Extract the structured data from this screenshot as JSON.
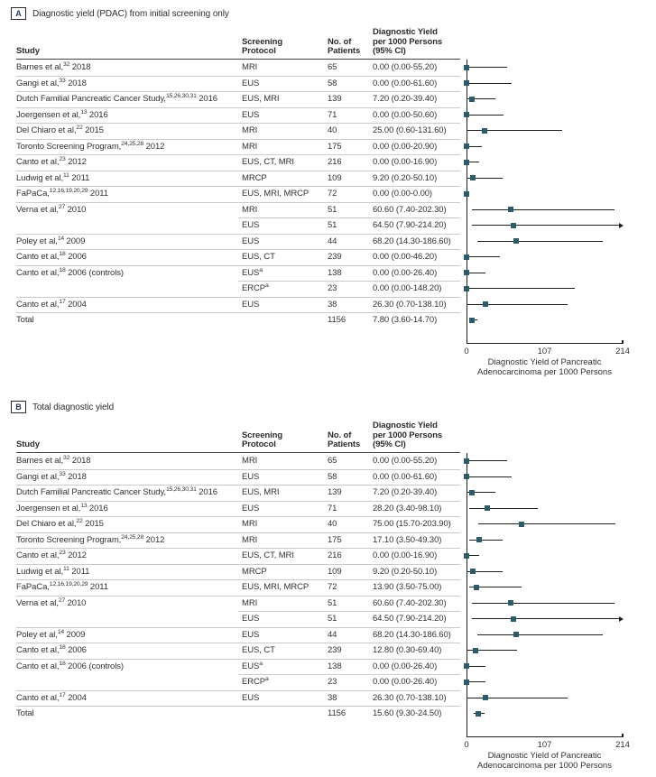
{
  "colors": {
    "marker": "#2d5b69",
    "ci_line": "#1f1f1f",
    "separator": "#cbcbcb",
    "header_rule": "#424242",
    "text": "#323232"
  },
  "chart_data": [
    {
      "type": "scatter",
      "subtype": "forest-plot",
      "panel_label": "A",
      "panel_title": "Diagnostic yield (PDAC) from initial screening only",
      "columns": {
        "study": "Study",
        "protocol": "Screening\nProtocol",
        "patients": "No. of\nPatients",
        "yield": "Diagnostic Yield\nper 1000 Persons\n(95% CI)"
      },
      "xlabel": "Diagnostic Yield of Pancreatic\nAdenocarcinoma per 1000 Persons",
      "xlim": [
        0,
        214
      ],
      "xticks": [
        "0",
        "107",
        "214"
      ],
      "xtick_values": [
        0,
        107,
        214
      ],
      "rows": [
        {
          "study": "Barnes et al,",
          "refs": "32",
          "suffix": " 2018",
          "protocol": "MRI",
          "patients": "65",
          "ci_text": "0.00 (0.00-55.20)",
          "est": 0,
          "lo": 0,
          "hi": 55.2
        },
        {
          "study": "Gangi et al,",
          "refs": "33",
          "suffix": " 2018",
          "protocol": "EUS",
          "patients": "58",
          "ci_text": "0.00 (0.00-61.60)",
          "est": 0,
          "lo": 0,
          "hi": 61.6
        },
        {
          "study": "Dutch Familial Pancreatic Cancer Study,",
          "refs": "15,26,30,31",
          "suffix": " 2016",
          "protocol": "EUS, MRI",
          "patients": "139",
          "ci_text": "7.20 (0.20-39.40)",
          "est": 7.2,
          "lo": 0.2,
          "hi": 39.4
        },
        {
          "study": "Joergensen et al,",
          "refs": "13",
          "suffix": " 2016",
          "protocol": "EUS",
          "patients": "71",
          "ci_text": "0.00 (0.00-50.60)",
          "est": 0,
          "lo": 0,
          "hi": 50.6
        },
        {
          "study": "Del Chiaro et al,",
          "refs": "22",
          "suffix": " 2015",
          "protocol": "MRI",
          "patients": "40",
          "ci_text": "25.00 (0.60-131.60)",
          "est": 25,
          "lo": 0.6,
          "hi": 131.6
        },
        {
          "study": "Toronto Screening Program,",
          "refs": "24,25,28",
          "suffix": " 2012",
          "protocol": "MRI",
          "patients": "175",
          "ci_text": "0.00 (0.00-20.90)",
          "est": 0,
          "lo": 0,
          "hi": 20.9
        },
        {
          "study": "Canto et al,",
          "refs": "23",
          "suffix": " 2012",
          "protocol": "EUS, CT, MRI",
          "patients": "216",
          "ci_text": "0.00 (0.00-16.90)",
          "est": 0,
          "lo": 0,
          "hi": 16.9
        },
        {
          "study": "Ludwig et al,",
          "refs": "11",
          "suffix": " 2011",
          "protocol": "MRCP",
          "patients": "109",
          "ci_text": "9.20 (0.20-50.10)",
          "est": 9.2,
          "lo": 0.2,
          "hi": 50.1
        },
        {
          "study": "FaPaCa,",
          "refs": "12,16,19,20,29",
          "suffix": " 2011",
          "protocol": "EUS, MRI, MRCP",
          "patients": "72",
          "ci_text": "0.00 (0.00-0.00)",
          "est": 0,
          "lo": 0,
          "hi": 0
        },
        {
          "study": "Verna et al,",
          "refs": "27",
          "suffix": " 2010",
          "protocol": "MRI",
          "patients": "51",
          "ci_text": "60.60 (7.40-202.30)",
          "est": 60.6,
          "lo": 7.4,
          "hi": 202.3
        },
        {
          "continuation": true,
          "protocol": "EUS",
          "patients": "51",
          "ci_text": "64.50 (7.90-214.20)",
          "est": 64.5,
          "lo": 7.9,
          "hi": 214.2,
          "arrow": true
        },
        {
          "study": "Poley et al,",
          "refs": "14",
          "suffix": " 2009",
          "protocol": "EUS",
          "patients": "44",
          "ci_text": "68.20 (14.30-186.60)",
          "est": 68.2,
          "lo": 14.3,
          "hi": 186.6
        },
        {
          "study": "Canto et al,",
          "refs": "18",
          "suffix": " 2006",
          "protocol": "EUS, CT",
          "patients": "239",
          "ci_text": "0.00 (0.00-46.20)",
          "est": 0,
          "lo": 0,
          "hi": 46.2
        },
        {
          "study": "Canto et al,",
          "refs": "18",
          "suffix": " 2006 (controls)",
          "protocol": "EUS",
          "protocol_sup": "a",
          "patients": "138",
          "ci_text": "0.00 (0.00-26.40)",
          "est": 0,
          "lo": 0,
          "hi": 26.4
        },
        {
          "continuation": true,
          "protocol": "ERCP",
          "protocol_sup": "a",
          "patients": "23",
          "ci_text": "0.00 (0.00-148.20)",
          "est": 0,
          "lo": 0,
          "hi": 148.2
        },
        {
          "study": "Canto et al,",
          "refs": "17",
          "suffix": " 2004",
          "protocol": "EUS",
          "patients": "38",
          "ci_text": "26.30 (0.70-138.10)",
          "est": 26.3,
          "lo": 0.7,
          "hi": 138.1
        },
        {
          "study": "Total",
          "total": true,
          "protocol": "",
          "patients": "1156",
          "ci_text": "7.80 (3.60-14.70)",
          "est": 7.8,
          "lo": 3.6,
          "hi": 14.7
        }
      ]
    },
    {
      "type": "scatter",
      "subtype": "forest-plot",
      "panel_label": "B",
      "panel_title": "Total diagnostic yield",
      "columns": {
        "study": "Study",
        "protocol": "Screening\nProtocol",
        "patients": "No. of\nPatients",
        "yield": "Diagnostic Yield\nper 1000 Persons\n(95% CI)"
      },
      "xlabel": "Diagnostic Yield of Pancreatic\nAdenocarcinoma per 1000 Persons",
      "xlim": [
        0,
        214
      ],
      "xticks": [
        "0",
        "107",
        "214"
      ],
      "xtick_values": [
        0,
        107,
        214
      ],
      "rows": [
        {
          "study": "Barnes et al,",
          "refs": "32",
          "suffix": " 2018",
          "protocol": "MRI",
          "patients": "65",
          "ci_text": "0.00 (0.00-55.20)",
          "est": 0,
          "lo": 0,
          "hi": 55.2
        },
        {
          "study": "Gangi et al,",
          "refs": "33",
          "suffix": " 2018",
          "protocol": "EUS",
          "patients": "58",
          "ci_text": "0.00 (0.00-61.60)",
          "est": 0,
          "lo": 0,
          "hi": 61.6
        },
        {
          "study": "Dutch Familial Pancreatic Cancer Study,",
          "refs": "15,26,30,31",
          "suffix": " 2016",
          "protocol": "EUS, MRI",
          "patients": "139",
          "ci_text": "7.20 (0.20-39.40)",
          "est": 7.2,
          "lo": 0.2,
          "hi": 39.4
        },
        {
          "study": "Joergensen et al,",
          "refs": "13",
          "suffix": " 2016",
          "protocol": "EUS",
          "patients": "71",
          "ci_text": "28.20 (3.40-98.10)",
          "est": 28.2,
          "lo": 3.4,
          "hi": 98.1
        },
        {
          "study": "Del Chiaro et al,",
          "refs": "22",
          "suffix": " 2015",
          "protocol": "MRI",
          "patients": "40",
          "ci_text": "75.00 (15.70-203.90)",
          "est": 75,
          "lo": 15.7,
          "hi": 203.9
        },
        {
          "study": "Toronto Screening Program,",
          "refs": "24,25,28",
          "suffix": " 2012",
          "protocol": "MRI",
          "patients": "175",
          "ci_text": "17.10 (3.50-49.30)",
          "est": 17.1,
          "lo": 3.5,
          "hi": 49.3
        },
        {
          "study": "Canto et al,",
          "refs": "23",
          "suffix": " 2012",
          "protocol": "EUS, CT, MRI",
          "patients": "216",
          "ci_text": "0.00 (0.00-16.90)",
          "est": 0,
          "lo": 0,
          "hi": 16.9
        },
        {
          "study": "Ludwig et al,",
          "refs": "11",
          "suffix": " 2011",
          "protocol": "MRCP",
          "patients": "109",
          "ci_text": "9.20 (0.20-50.10)",
          "est": 9.2,
          "lo": 0.2,
          "hi": 50.1
        },
        {
          "study": "FaPaCa,",
          "refs": "12,16,19,20,29",
          "suffix": " 2011",
          "protocol": "EUS, MRI, MRCP",
          "patients": "72",
          "ci_text": "13.90 (3.50-75.00)",
          "est": 13.9,
          "lo": 3.5,
          "hi": 75
        },
        {
          "study": "Verna et al,",
          "refs": "27",
          "suffix": " 2010",
          "protocol": "MRI",
          "patients": "51",
          "ci_text": "60.60 (7.40-202.30)",
          "est": 60.6,
          "lo": 7.4,
          "hi": 202.3
        },
        {
          "continuation": true,
          "protocol": "EUS",
          "patients": "51",
          "ci_text": "64.50 (7.90-214.20)",
          "est": 64.5,
          "lo": 7.9,
          "hi": 214.2,
          "arrow": true
        },
        {
          "study": "Poley et al,",
          "refs": "14",
          "suffix": " 2009",
          "protocol": "EUS",
          "patients": "44",
          "ci_text": "68.20 (14.30-186.60)",
          "est": 68.2,
          "lo": 14.3,
          "hi": 186.6
        },
        {
          "study": "Canto et al,",
          "refs": "18",
          "suffix": " 2006",
          "protocol": "EUS, CT",
          "patients": "239",
          "ci_text": "12.80 (0.30-69.40)",
          "est": 12.8,
          "lo": 0.3,
          "hi": 69.4
        },
        {
          "study": "Canto et al,",
          "refs": "18",
          "suffix": " 2006 (controls)",
          "protocol": "EUS",
          "protocol_sup": "a",
          "patients": "138",
          "ci_text": "0.00 (0.00-26.40)",
          "est": 0,
          "lo": 0,
          "hi": 26.4
        },
        {
          "continuation": true,
          "protocol": "ERCP",
          "protocol_sup": "a",
          "patients": "23",
          "ci_text": "0.00 (0.00-26.40)",
          "est": 0,
          "lo": 0,
          "hi": 26.4
        },
        {
          "study": "Canto et al,",
          "refs": "17",
          "suffix": " 2004",
          "protocol": "EUS",
          "patients": "38",
          "ci_text": "26.30 (0.70-138.10)",
          "est": 26.3,
          "lo": 0.7,
          "hi": 138.1
        },
        {
          "study": "Total",
          "total": true,
          "protocol": "",
          "patients": "1156",
          "ci_text": "15.60 (9.30-24.50)",
          "est": 15.6,
          "lo": 9.3,
          "hi": 24.5
        }
      ]
    }
  ]
}
